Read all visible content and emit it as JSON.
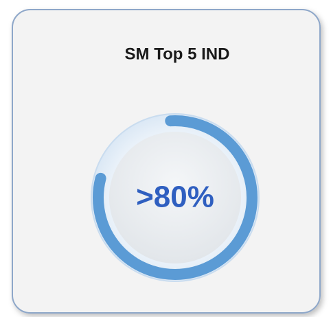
{
  "chart_data": {
    "type": "gauge",
    "title": "SM Top 5 IND",
    "value": 80,
    "value_label": ">80%",
    "ylim": [
      0,
      100
    ],
    "color": "#5b9bd5"
  }
}
